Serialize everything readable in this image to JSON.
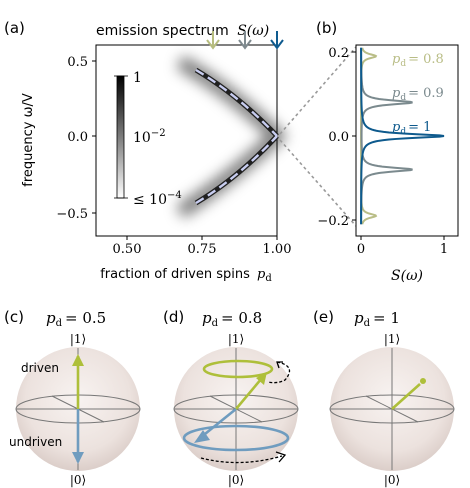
{
  "panels": {
    "a_label": "(a)",
    "b_label": "(b)",
    "c_label": "(c)",
    "d_label": "(d)",
    "e_label": "(e)"
  },
  "panel_a": {
    "title_text": "emission spectrum",
    "title_symbol": "S(ω)",
    "ylabel": "frequency ω/V",
    "xlabel": "fraction of driven spins",
    "xlabel_symbol": "p",
    "xlabel_sub": "d",
    "xticks": [
      "0.50",
      "0.75",
      "1.00"
    ],
    "yticks": [
      "0.5",
      "0.0",
      "−0.5"
    ],
    "colorbar": {
      "top": "1",
      "mid_base": "10",
      "mid_exp": "−2",
      "bot_prefix": "≤ 10",
      "bot_exp": "−4"
    },
    "arrow_colors": [
      "#b7bd7f",
      "#7f8a8f",
      "#0f5b8f"
    ]
  },
  "panel_b": {
    "xlabel": "S(ω)",
    "xticks": [
      "0",
      "1"
    ],
    "yticks": [
      "0.2",
      "0.0",
      "−0.2"
    ],
    "legend": [
      {
        "text": "= 0.8",
        "color": "#b9bd86"
      },
      {
        "text": "= 0.9",
        "color": "#7b8a8e"
      },
      {
        "text": "= 1",
        "color": "#0e5a8d"
      }
    ]
  },
  "chart_data": {
    "type": "line",
    "x_label": "S(ω)",
    "series": [
      {
        "name": "p_d = 0.8",
        "color": "#b9bd86",
        "peaks": [
          {
            "omega": 0.19,
            "height": 0.18
          },
          {
            "omega": -0.19,
            "height": 0.18
          }
        ]
      },
      {
        "name": "p_d = 0.9",
        "color": "#7b8a8e",
        "peaks": [
          {
            "omega": 0.08,
            "height": 0.62
          },
          {
            "omega": -0.08,
            "height": 0.62
          }
        ]
      },
      {
        "name": "p_d = 1",
        "color": "#0e5a8d",
        "peaks": [
          {
            "omega": 0.0,
            "height": 1.0
          }
        ]
      }
    ],
    "xlim": [
      -0.05,
      1.05
    ],
    "ylim": [
      -0.22,
      0.22
    ]
  },
  "spheres": {
    "c_title": "= 0.5",
    "d_title": "= 0.8",
    "e_title": "= 1",
    "ket1": "|1⟩",
    "ket0": "|0⟩",
    "driven_label": "driven",
    "undriven_label": "undriven",
    "driven_color": "#aebf3a",
    "undriven_color": "#6f9cbf"
  }
}
